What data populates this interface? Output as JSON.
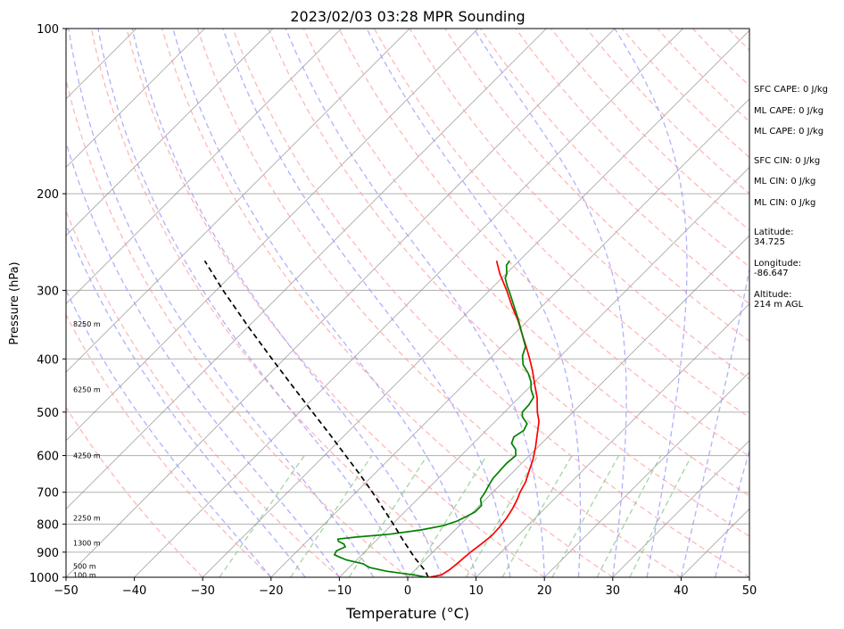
{
  "chart_data": {
    "type": "line",
    "title": "2023/02/03 03:28 MPR Sounding",
    "xlabel": "Temperature (°C)",
    "ylabel": "Pressure (hPa)",
    "xlim": [
      -50,
      50
    ],
    "ylim": [
      1000,
      100
    ],
    "y_scale": "log",
    "skew": true,
    "grid": true,
    "x_ticks": [
      "−50",
      "−40",
      "−30",
      "−20",
      "−10",
      "0",
      "10",
      "20",
      "30",
      "40",
      "50"
    ],
    "y_ticks": [
      "100",
      "200",
      "300",
      "400",
      "500",
      "600",
      "700",
      "800",
      "900",
      "1000"
    ],
    "height_labels": [
      {
        "pressure": 345,
        "label": "8250 m"
      },
      {
        "pressure": 455,
        "label": "6250 m"
      },
      {
        "pressure": 600,
        "label": "4250 m"
      },
      {
        "pressure": 780,
        "label": "2250 m"
      },
      {
        "pressure": 865,
        "label": "1300 m"
      },
      {
        "pressure": 955,
        "label": "500 m"
      },
      {
        "pressure": 990,
        "label": "100 m"
      }
    ],
    "series": [
      {
        "key": "temperature",
        "color": "#ff0000",
        "points": [
          [
            1000,
            3.2
          ],
          [
            990,
            4.6
          ],
          [
            970,
            5.0
          ],
          [
            950,
            5.2
          ],
          [
            920,
            5.4
          ],
          [
            900,
            5.5
          ],
          [
            870,
            5.9
          ],
          [
            840,
            6.2
          ],
          [
            810,
            6.1
          ],
          [
            780,
            5.8
          ],
          [
            750,
            5.3
          ],
          [
            720,
            4.6
          ],
          [
            700,
            4.0
          ],
          [
            670,
            3.3
          ],
          [
            640,
            2.2
          ],
          [
            610,
            1.1
          ],
          [
            580,
            -0.3
          ],
          [
            550,
            -1.9
          ],
          [
            520,
            -3.6
          ],
          [
            500,
            -5.2
          ],
          [
            470,
            -7.4
          ],
          [
            450,
            -9.2
          ],
          [
            420,
            -12.0
          ],
          [
            400,
            -14.1
          ],
          [
            380,
            -16.4
          ],
          [
            360,
            -18.9
          ],
          [
            340,
            -21.5
          ],
          [
            320,
            -24.5
          ],
          [
            300,
            -27.5
          ],
          [
            280,
            -30.9
          ],
          [
            265,
            -33.3
          ]
        ]
      },
      {
        "key": "dewpoint",
        "color": "#008000",
        "points": [
          [
            1000,
            2.8
          ],
          [
            990,
            0.5
          ],
          [
            975,
            -4.0
          ],
          [
            960,
            -7.0
          ],
          [
            945,
            -8.5
          ],
          [
            930,
            -11.5
          ],
          [
            920,
            -12.8
          ],
          [
            910,
            -14.0
          ],
          [
            895,
            -14.3
          ],
          [
            880,
            -13.6
          ],
          [
            870,
            -14.2
          ],
          [
            860,
            -15.4
          ],
          [
            852,
            -15.8
          ],
          [
            845,
            -13.5
          ],
          [
            835,
            -9.0
          ],
          [
            820,
            -5.0
          ],
          [
            805,
            -2.3
          ],
          [
            790,
            -1.0
          ],
          [
            775,
            -0.3
          ],
          [
            760,
            0.3
          ],
          [
            740,
            0.3
          ],
          [
            720,
            -0.8
          ],
          [
            700,
            -1.1
          ],
          [
            680,
            -1.6
          ],
          [
            660,
            -2.0
          ],
          [
            640,
            -2.1
          ],
          [
            620,
            -2.2
          ],
          [
            600,
            -2.0
          ],
          [
            585,
            -2.9
          ],
          [
            570,
            -4.4
          ],
          [
            555,
            -5.0
          ],
          [
            540,
            -4.5
          ],
          [
            525,
            -5.0
          ],
          [
            510,
            -6.7
          ],
          [
            500,
            -7.4
          ],
          [
            485,
            -7.5
          ],
          [
            470,
            -7.9
          ],
          [
            455,
            -9.4
          ],
          [
            440,
            -10.6
          ],
          [
            425,
            -12.2
          ],
          [
            410,
            -14.2
          ],
          [
            395,
            -15.6
          ],
          [
            380,
            -16.5
          ],
          [
            360,
            -18.9
          ],
          [
            340,
            -21.4
          ],
          [
            320,
            -24.2
          ],
          [
            305,
            -26.4
          ],
          [
            295,
            -28.0
          ],
          [
            285,
            -29.5
          ],
          [
            280,
            -29.9
          ],
          [
            270,
            -31.2
          ],
          [
            265,
            -31.4
          ]
        ]
      },
      {
        "key": "parcel",
        "color": "#000000",
        "dashed": true,
        "points": [
          [
            1000,
            3.0
          ],
          [
            975,
            1.7
          ],
          [
            950,
            0.1
          ],
          [
            925,
            -1.6
          ],
          [
            900,
            -3.2
          ],
          [
            850,
            -6.5
          ],
          [
            800,
            -9.9
          ],
          [
            750,
            -13.6
          ],
          [
            700,
            -17.6
          ],
          [
            650,
            -22.0
          ],
          [
            600,
            -26.9
          ],
          [
            550,
            -32.2
          ],
          [
            500,
            -38.1
          ],
          [
            450,
            -44.6
          ],
          [
            400,
            -51.8
          ],
          [
            350,
            -59.9
          ],
          [
            300,
            -69.0
          ],
          [
            265,
            -76.0
          ]
        ]
      }
    ]
  },
  "info": {
    "sfc_cape": "SFC CAPE: 0 J/kg",
    "ml_cape": "ML CAPE: 0 J/kg",
    "ml_cape_2": "ML CAPE: 0 J/kg",
    "sfc_cin": "SFC CIN: 0 J/kg",
    "ml_cin": "ML CIN: 0 J/kg",
    "ml_cin_2": "ML CIN: 0 J/kg",
    "latitude": "Latitude:\n34.725",
    "longitude": "Longitude:\n-86.647",
    "altitude": "Altitude:\n214 m AGL"
  },
  "colors": {
    "dry_adiabat": "#ff9a9a",
    "moist_adiabat": "#8f8fff",
    "mixing_ratio": "#8ccb8c",
    "isotherm": "#8a8a8a"
  }
}
